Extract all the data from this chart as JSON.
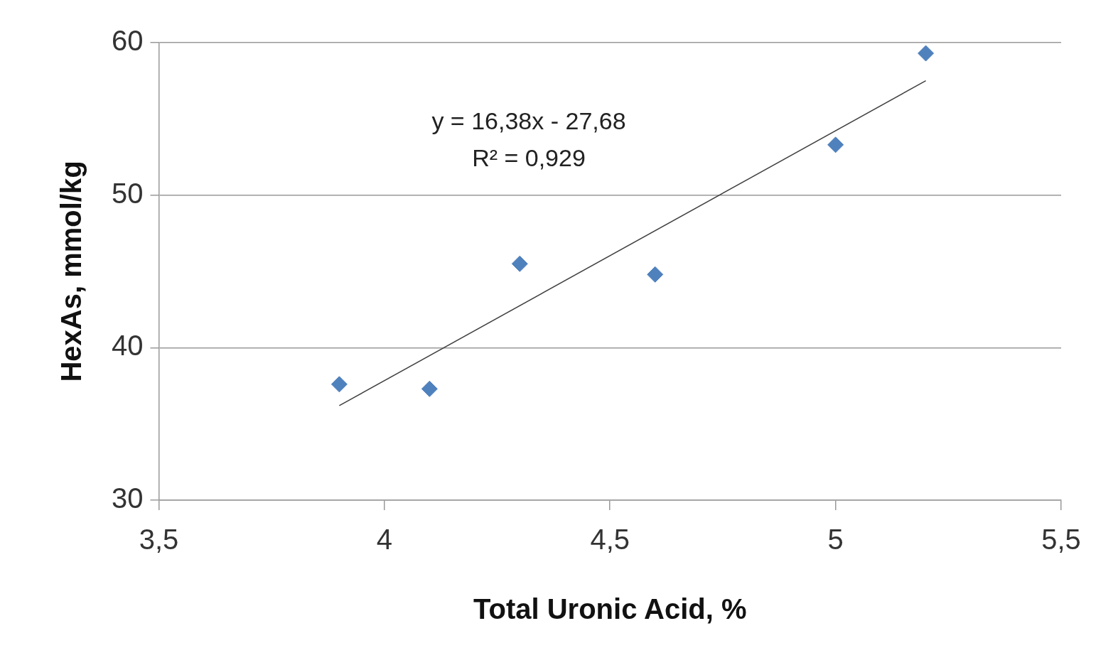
{
  "chart_data": {
    "type": "scatter",
    "xlabel": "Total Uronic Acid, %",
    "ylabel": "HexAs, mmol/kg",
    "annotations": [
      "y = 16,38x - 27,68",
      "R² = 0,929"
    ],
    "series": [
      {
        "color": "#4f81bd",
        "marker": "diamond",
        "x": [
          3.9,
          4.1,
          4.3,
          4.6,
          5.0,
          5.2
        ],
        "values": [
          37.6,
          37.3,
          45.5,
          44.8,
          53.3,
          59.3
        ]
      },
      {
        "type": "line",
        "color": "#404040",
        "marker": "none",
        "x": [
          3.9,
          5.2
        ],
        "values": [
          36.2,
          57.5
        ]
      }
    ],
    "xlim": [
      3.5,
      5.5
    ],
    "xticks": [
      {
        "value": 3.5,
        "label": "3,5"
      },
      4,
      {
        "value": 4.5,
        "label": "4,5"
      },
      5,
      {
        "value": 5.5,
        "label": "5,5"
      }
    ],
    "ylim": [
      30,
      60
    ],
    "yticks": [
      30,
      40,
      50,
      60
    ],
    "grid": "y",
    "legend": false
  }
}
